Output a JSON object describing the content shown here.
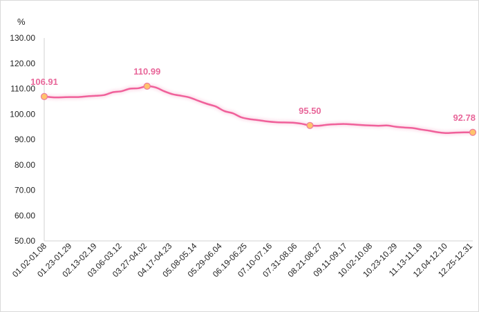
{
  "chart_data": {
    "type": "line",
    "ylabel": "%",
    "ylim": [
      50,
      130
    ],
    "yticks": [
      "50.00",
      "60.00",
      "70.00",
      "80.00",
      "90.00",
      "100.00",
      "110.00",
      "120.00",
      "130.00"
    ],
    "xtick_labels": [
      "01.02-01.08",
      "01.23-01.29",
      "02.13-02.19",
      "03.06-03.12",
      "03.27-04.02",
      "04.17-04.23",
      "05.08-05.14",
      "05.29-06.04",
      "06.19-06.25",
      "07.10-07.16",
      "07.31-08.06",
      "08.21-08.27",
      "09.11-09.17",
      "10.02-10.08",
      "10.23-10.29",
      "11.13-11.19",
      "12.04-12.10",
      "12.25-12.31"
    ],
    "series": [
      {
        "values": [
          106.91,
          106.6,
          106.6,
          106.7,
          106.7,
          107.0,
          107.2,
          107.5,
          108.6,
          109.0,
          110.0,
          110.2,
          110.99,
          110.5,
          109.0,
          107.8,
          107.2,
          106.5,
          105.2,
          104.0,
          103.0,
          101.2,
          100.3,
          98.7,
          98.0,
          97.6,
          97.1,
          96.8,
          96.7,
          96.6,
          96.2,
          95.5,
          95.4,
          95.8,
          96.0,
          96.1,
          95.9,
          95.7,
          95.5,
          95.4,
          95.5,
          95.0,
          94.7,
          94.5,
          93.9,
          93.4,
          92.8,
          92.5,
          92.7,
          92.8,
          92.78
        ],
        "color": "#f0609a",
        "labeled_points": [
          {
            "index": 0,
            "label": "106.91"
          },
          {
            "index": 12,
            "label": "110.99"
          },
          {
            "index": 31,
            "label": "95.50"
          },
          {
            "index": 50,
            "label": "92.78"
          }
        ]
      }
    ],
    "grid": false,
    "marker_fill": "#ffc36b",
    "marker_stroke": "#ec7a9b",
    "label_color": "#e8679a"
  }
}
